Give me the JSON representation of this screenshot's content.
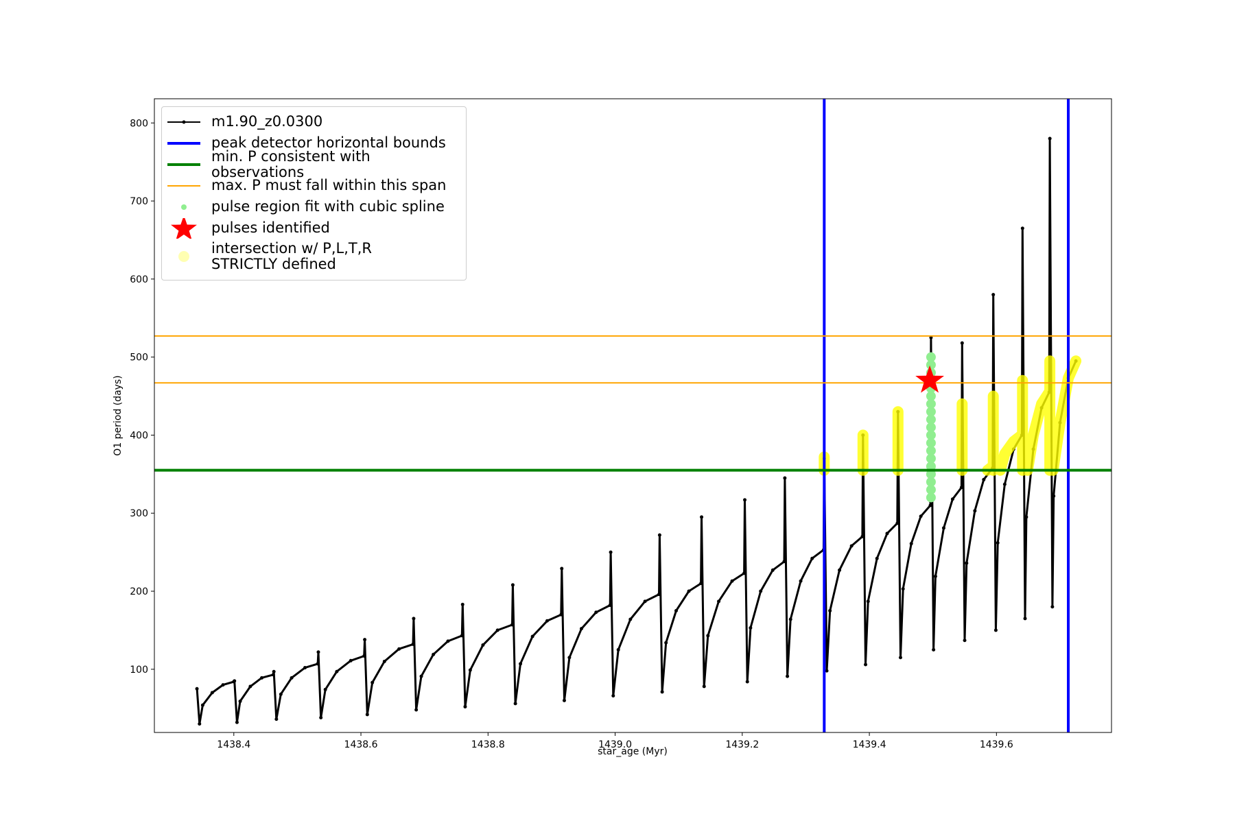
{
  "chart_data": {
    "type": "line",
    "xlabel": "star_age (Myr)",
    "ylabel": "O1 period (days)",
    "xlim": [
      1438.275,
      1439.781
    ],
    "ylim": [
      19,
      831
    ],
    "xticks": [
      1438.4,
      1438.6,
      1438.8,
      {
        "value": 1439,
        "label": "1439.0"
      },
      1439.2,
      1439.4,
      1439.6
    ],
    "yticks": [
      100,
      200,
      300,
      400,
      500,
      600,
      700,
      800
    ],
    "legend": "upper left",
    "series": [
      {
        "name": "m1.90_z0.0300",
        "type": "line",
        "color": "black",
        "x": [
          1438.342,
          1438.346,
          1438.351,
          1438.366,
          1438.383,
          1438.4,
          1438.401,
          1438.405,
          1438.41,
          1438.426,
          1438.444,
          1438.462,
          1438.463,
          1438.467,
          1438.474,
          1438.491,
          1438.512,
          1438.532,
          1438.533,
          1438.537,
          1438.544,
          1438.562,
          1438.584,
          1438.605,
          1438.606,
          1438.61,
          1438.618,
          1438.637,
          1438.66,
          1438.682,
          1438.683,
          1438.687,
          1438.695,
          1438.714,
          1438.737,
          1438.759,
          1438.76,
          1438.764,
          1438.772,
          1438.792,
          1438.815,
          1438.838,
          1438.839,
          1438.843,
          1438.851,
          1438.87,
          1438.893,
          1438.915,
          1438.916,
          1438.92,
          1438.928,
          1438.947,
          1438.97,
          1438.992,
          1438.993,
          1438.997,
          1439.005,
          1439.024,
          1439.047,
          1439.069,
          1439.07,
          1439.074,
          1439.08,
          1439.096,
          1439.116,
          1439.135,
          1439.136,
          1439.14,
          1439.146,
          1439.163,
          1439.184,
          1439.203,
          1439.204,
          1439.208,
          1439.213,
          1439.229,
          1439.248,
          1439.266,
          1439.267,
          1439.271,
          1439.276,
          1439.292,
          1439.31,
          1439.328,
          1439.329,
          1439.333,
          1439.338,
          1439.353,
          1439.372,
          1439.389,
          1439.39,
          1439.394,
          1439.398,
          1439.412,
          1439.428,
          1439.444,
          1439.445,
          1439.449,
          1439.453,
          1439.466,
          1439.481,
          1439.496,
          1439.497,
          1439.501,
          1439.504,
          1439.517,
          1439.531,
          1439.545,
          1439.546,
          1439.55,
          1439.553,
          1439.566,
          1439.58,
          1439.594,
          1439.595,
          1439.599,
          1439.602,
          1439.613,
          1439.627,
          1439.64,
          1439.641,
          1439.645,
          1439.647,
          1439.658,
          1439.671,
          1439.683,
          1439.684,
          1439.688,
          1439.69,
          1439.7,
          1439.713,
          1439.725
        ],
        "values": [
          75,
          30,
          54,
          70,
          80,
          84,
          85,
          32,
          59,
          78,
          89,
          93,
          97,
          36,
          68,
          89,
          102,
          107,
          122,
          38,
          74,
          97,
          111,
          117,
          138,
          42,
          83,
          110,
          126,
          132,
          165,
          48,
          91,
          119,
          136,
          143,
          183,
          52,
          99,
          131,
          150,
          157,
          208,
          56,
          107,
          142,
          162,
          170,
          229,
          60,
          115,
          152,
          173,
          182,
          250,
          66,
          125,
          164,
          187,
          196,
          272,
          71,
          134,
          175,
          200,
          210,
          295,
          78,
          143,
          187,
          213,
          223,
          317,
          84,
          153,
          200,
          227,
          238,
          345,
          91,
          164,
          213,
          242,
          253,
          370,
          98,
          175,
          227,
          258,
          270,
          400,
          106,
          187,
          242,
          274,
          287,
          430,
          115,
          203,
          261,
          296,
          310,
          525,
          125,
          219,
          281,
          318,
          333,
          518,
          137,
          236,
          303,
          343,
          358,
          580,
          150,
          262,
          337,
          382,
          400,
          665,
          165,
          295,
          382,
          435,
          455,
          780,
          180,
          322,
          416,
          473,
          495
        ]
      },
      {
        "name": "peak detector horizontal bounds",
        "type": "vline",
        "color": "blue",
        "x": [
          1439.329,
          1439.713
        ]
      },
      {
        "name": "min. P consistent with observations",
        "type": "hline",
        "color": "green",
        "values": [
          355
        ]
      },
      {
        "name": "max. P must fall within this span",
        "type": "hline",
        "color": "orange",
        "values": [
          467,
          527
        ]
      },
      {
        "name": "pulse region fit with cubic spline",
        "type": "scatter",
        "color": "lightgreen",
        "x": [
          1439.497,
          1439.497,
          1439.497,
          1439.497,
          1439.497,
          1439.497,
          1439.497,
          1439.497,
          1439.497,
          1439.497,
          1439.497,
          1439.497,
          1439.497,
          1439.497,
          1439.497,
          1439.497,
          1439.497,
          1439.497,
          1439.497
        ],
        "values": [
          320,
          330,
          340,
          350,
          360,
          370,
          380,
          390,
          400,
          410,
          420,
          430,
          440,
          450,
          460,
          470,
          480,
          490,
          500
        ]
      },
      {
        "name": "pulses identified",
        "type": "star",
        "color": "red",
        "x": [
          1439.495
        ],
        "values": [
          470
        ]
      },
      {
        "name": "intersection w/ P,L,T,R\nSTRICTLY defined",
        "type": "band",
        "color": "yellow",
        "x": [
          1439.329,
          1439.329,
          null,
          1439.39,
          1439.39,
          null,
          1439.445,
          1439.445,
          null,
          1439.546,
          1439.546,
          null,
          1439.595,
          1439.595,
          null,
          1439.641,
          1439.641,
          null,
          1439.684,
          1439.684,
          null,
          1439.586,
          1439.594,
          null,
          1439.606,
          1439.613,
          1439.627,
          1439.64,
          null,
          1439.649,
          1439.658,
          1439.671,
          1439.683,
          null,
          1439.689,
          1439.7,
          1439.713,
          1439.725
        ],
        "values": [
          355,
          372,
          null,
          355,
          400,
          null,
          355,
          430,
          null,
          355,
          440,
          null,
          355,
          450,
          null,
          355,
          470,
          null,
          355,
          495,
          null,
          355,
          360,
          null,
          355,
          376,
          392,
          400,
          null,
          355,
          400,
          440,
          455,
          null,
          355,
          416,
          473,
          495
        ]
      }
    ]
  }
}
